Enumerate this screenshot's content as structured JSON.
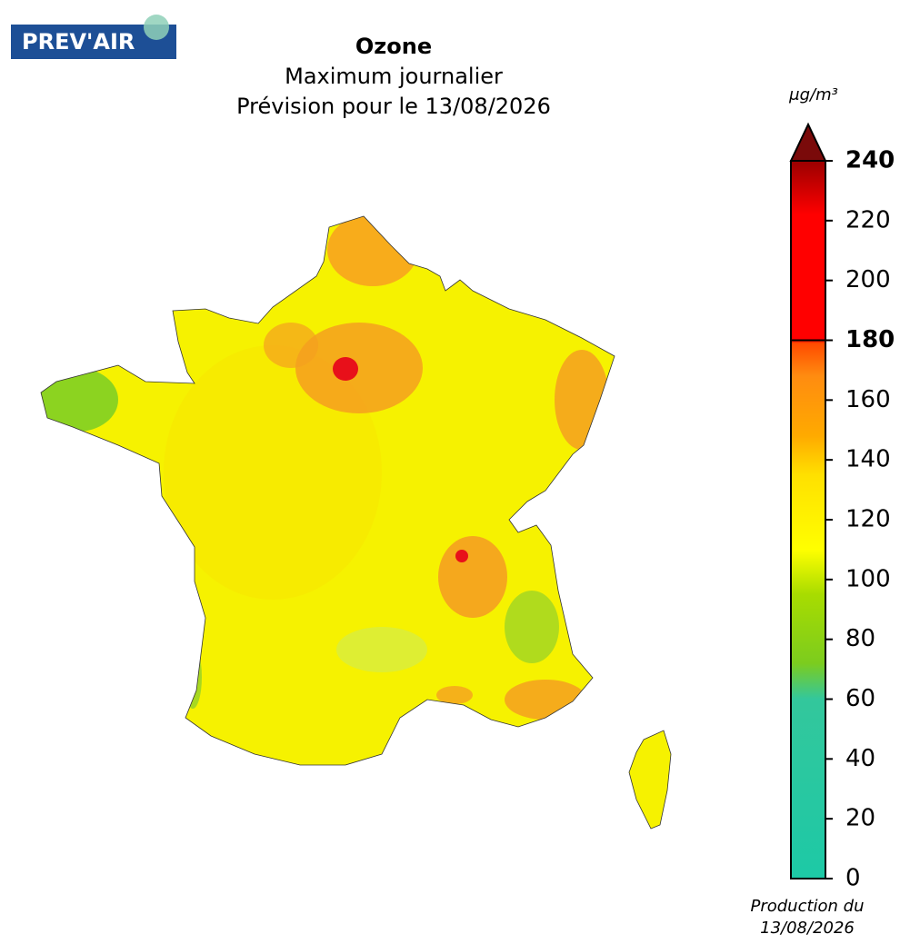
{
  "logo": "PREV'AIR",
  "chart_data": {
    "type": "map",
    "title": "Ozone",
    "subtitle": [
      "Maximum journalier",
      "Prévision pour le 13/08/2026"
    ],
    "colorbar": {
      "unit": "μg/m³",
      "lim": [
        0,
        240
      ],
      "ticks": [
        0,
        20,
        40,
        60,
        80,
        100,
        120,
        140,
        160,
        180,
        200,
        220,
        240
      ],
      "thresholds": [
        180,
        240
      ],
      "over_color": "#7a0a0a",
      "colors": [
        {
          "value": 0,
          "color": "#1dc9a6"
        },
        {
          "value": 60,
          "color": "#33c79c"
        },
        {
          "value": 72,
          "color": "#7ccc1e"
        },
        {
          "value": 95,
          "color": "#a8dc00"
        },
        {
          "value": 110,
          "color": "#ffff00"
        },
        {
          "value": 135,
          "color": "#ffe000"
        },
        {
          "value": 148,
          "color": "#ffaa00"
        },
        {
          "value": 168,
          "color": "#ff8c10"
        },
        {
          "value": 179,
          "color": "#ff4a00"
        },
        {
          "value": 180,
          "color": "#ff0000"
        },
        {
          "value": 222,
          "color": "#ff0000"
        },
        {
          "value": 240,
          "color": "#9a0000"
        }
      ]
    },
    "footnote": [
      "Production du",
      "13/08/2026"
    ]
  }
}
